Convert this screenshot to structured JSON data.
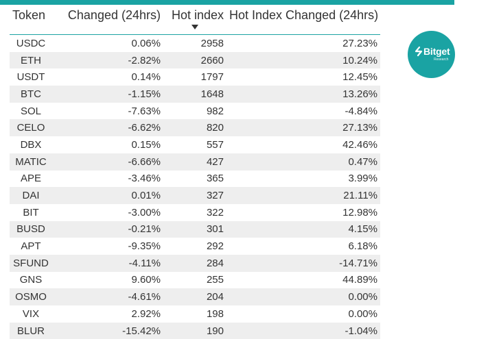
{
  "colors": {
    "accent": "#1aa3a3",
    "row_stripe": "#eeeeee",
    "text": "#333333"
  },
  "logo": {
    "name": "Bitget",
    "subtitle": "Research",
    "icon": "bitget-logo-icon"
  },
  "table": {
    "sorted_by": "Hot index",
    "sort_direction": "descending",
    "columns": [
      "Token",
      "Changed (24hrs)",
      "Hot index",
      "Hot Index Changed (24hrs)"
    ],
    "rows": [
      {
        "token": "USDC",
        "changed": "0.06%",
        "hot_index": "2958",
        "hot_index_changed": "27.23%"
      },
      {
        "token": "ETH",
        "changed": "-2.82%",
        "hot_index": "2660",
        "hot_index_changed": "10.24%"
      },
      {
        "token": "USDT",
        "changed": "0.14%",
        "hot_index": "1797",
        "hot_index_changed": "12.45%"
      },
      {
        "token": "BTC",
        "changed": "-1.15%",
        "hot_index": "1648",
        "hot_index_changed": "13.26%"
      },
      {
        "token": "SOL",
        "changed": "-7.63%",
        "hot_index": "982",
        "hot_index_changed": "-4.84%"
      },
      {
        "token": "CELO",
        "changed": "-6.62%",
        "hot_index": "820",
        "hot_index_changed": "27.13%"
      },
      {
        "token": "DBX",
        "changed": "0.15%",
        "hot_index": "557",
        "hot_index_changed": "42.46%"
      },
      {
        "token": "MATIC",
        "changed": "-6.66%",
        "hot_index": "427",
        "hot_index_changed": "0.47%"
      },
      {
        "token": "APE",
        "changed": "-3.46%",
        "hot_index": "365",
        "hot_index_changed": "3.99%"
      },
      {
        "token": "DAI",
        "changed": "0.01%",
        "hot_index": "327",
        "hot_index_changed": "21.11%"
      },
      {
        "token": "BIT",
        "changed": "-3.00%",
        "hot_index": "322",
        "hot_index_changed": "12.98%"
      },
      {
        "token": "BUSD",
        "changed": "-0.21%",
        "hot_index": "301",
        "hot_index_changed": "4.15%"
      },
      {
        "token": "APT",
        "changed": "-9.35%",
        "hot_index": "292",
        "hot_index_changed": "6.18%"
      },
      {
        "token": "SFUND",
        "changed": "-4.11%",
        "hot_index": "284",
        "hot_index_changed": "-14.71%"
      },
      {
        "token": "GNS",
        "changed": "9.60%",
        "hot_index": "255",
        "hot_index_changed": "44.89%"
      },
      {
        "token": "OSMO",
        "changed": "-4.61%",
        "hot_index": "204",
        "hot_index_changed": "0.00%"
      },
      {
        "token": "VIX",
        "changed": "2.92%",
        "hot_index": "198",
        "hot_index_changed": "0.00%"
      },
      {
        "token": "BLUR",
        "changed": "-15.42%",
        "hot_index": "190",
        "hot_index_changed": "-1.04%"
      }
    ]
  }
}
